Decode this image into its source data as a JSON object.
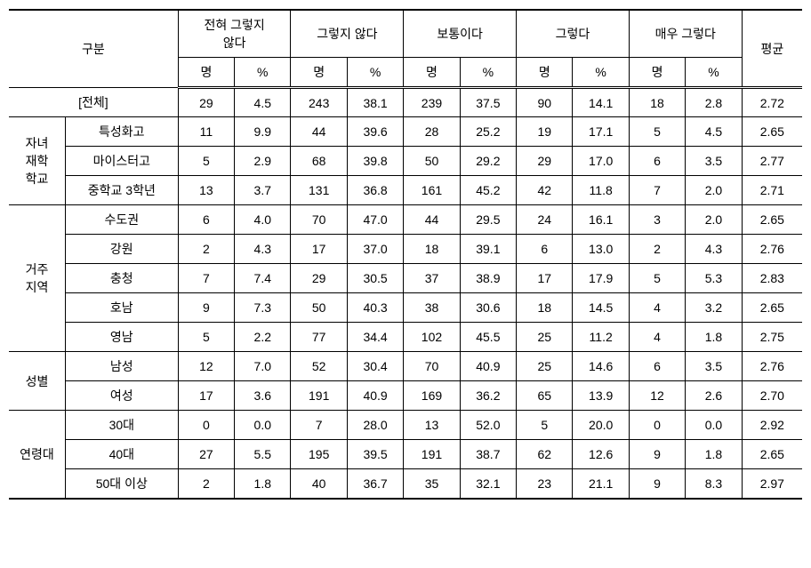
{
  "headers": {
    "category": "구분",
    "scale1": "전혀 그렇지\n않다",
    "scale2": "그렇지 않다",
    "scale3": "보통이다",
    "scale4": "그렇다",
    "scale5": "매우 그렇다",
    "avg": "평균",
    "count": "명",
    "pct": "%"
  },
  "total_label": "[전체]",
  "groups": [
    {
      "label": "자녀\n재학\n학교",
      "rows": [
        {
          "label": "특성화고",
          "v": [
            "11",
            "9.9",
            "44",
            "39.6",
            "28",
            "25.2",
            "19",
            "17.1",
            "5",
            "4.5",
            "2.65"
          ]
        },
        {
          "label": "마이스터고",
          "v": [
            "5",
            "2.9",
            "68",
            "39.8",
            "50",
            "29.2",
            "29",
            "17.0",
            "6",
            "3.5",
            "2.77"
          ]
        },
        {
          "label": "중학교 3학년",
          "v": [
            "13",
            "3.7",
            "131",
            "36.8",
            "161",
            "45.2",
            "42",
            "11.8",
            "7",
            "2.0",
            "2.71"
          ]
        }
      ]
    },
    {
      "label": "거주\n지역",
      "rows": [
        {
          "label": "수도권",
          "v": [
            "6",
            "4.0",
            "70",
            "47.0",
            "44",
            "29.5",
            "24",
            "16.1",
            "3",
            "2.0",
            "2.65"
          ]
        },
        {
          "label": "강원",
          "v": [
            "2",
            "4.3",
            "17",
            "37.0",
            "18",
            "39.1",
            "6",
            "13.0",
            "2",
            "4.3",
            "2.76"
          ]
        },
        {
          "label": "충청",
          "v": [
            "7",
            "7.4",
            "29",
            "30.5",
            "37",
            "38.9",
            "17",
            "17.9",
            "5",
            "5.3",
            "2.83"
          ]
        },
        {
          "label": "호남",
          "v": [
            "9",
            "7.3",
            "50",
            "40.3",
            "38",
            "30.6",
            "18",
            "14.5",
            "4",
            "3.2",
            "2.65"
          ]
        },
        {
          "label": "영남",
          "v": [
            "5",
            "2.2",
            "77",
            "34.4",
            "102",
            "45.5",
            "25",
            "11.2",
            "4",
            "1.8",
            "2.75"
          ]
        }
      ]
    },
    {
      "label": "성별",
      "rows": [
        {
          "label": "남성",
          "v": [
            "12",
            "7.0",
            "52",
            "30.4",
            "70",
            "40.9",
            "25",
            "14.6",
            "6",
            "3.5",
            "2.76"
          ]
        },
        {
          "label": "여성",
          "v": [
            "17",
            "3.6",
            "191",
            "40.9",
            "169",
            "36.2",
            "65",
            "13.9",
            "12",
            "2.6",
            "2.70"
          ]
        }
      ]
    },
    {
      "label": "연령대",
      "rows": [
        {
          "label": "30대",
          "v": [
            "0",
            "0.0",
            "7",
            "28.0",
            "13",
            "52.0",
            "5",
            "20.0",
            "0",
            "0.0",
            "2.92"
          ]
        },
        {
          "label": "40대",
          "v": [
            "27",
            "5.5",
            "195",
            "39.5",
            "191",
            "38.7",
            "62",
            "12.6",
            "9",
            "1.8",
            "2.65"
          ]
        },
        {
          "label": "50대 이상",
          "v": [
            "2",
            "1.8",
            "40",
            "36.7",
            "35",
            "32.1",
            "23",
            "21.1",
            "9",
            "8.3",
            "2.97"
          ]
        }
      ]
    }
  ],
  "total_row": [
    "29",
    "4.5",
    "243",
    "38.1",
    "239",
    "37.5",
    "90",
    "14.1",
    "18",
    "2.8",
    "2.72"
  ]
}
